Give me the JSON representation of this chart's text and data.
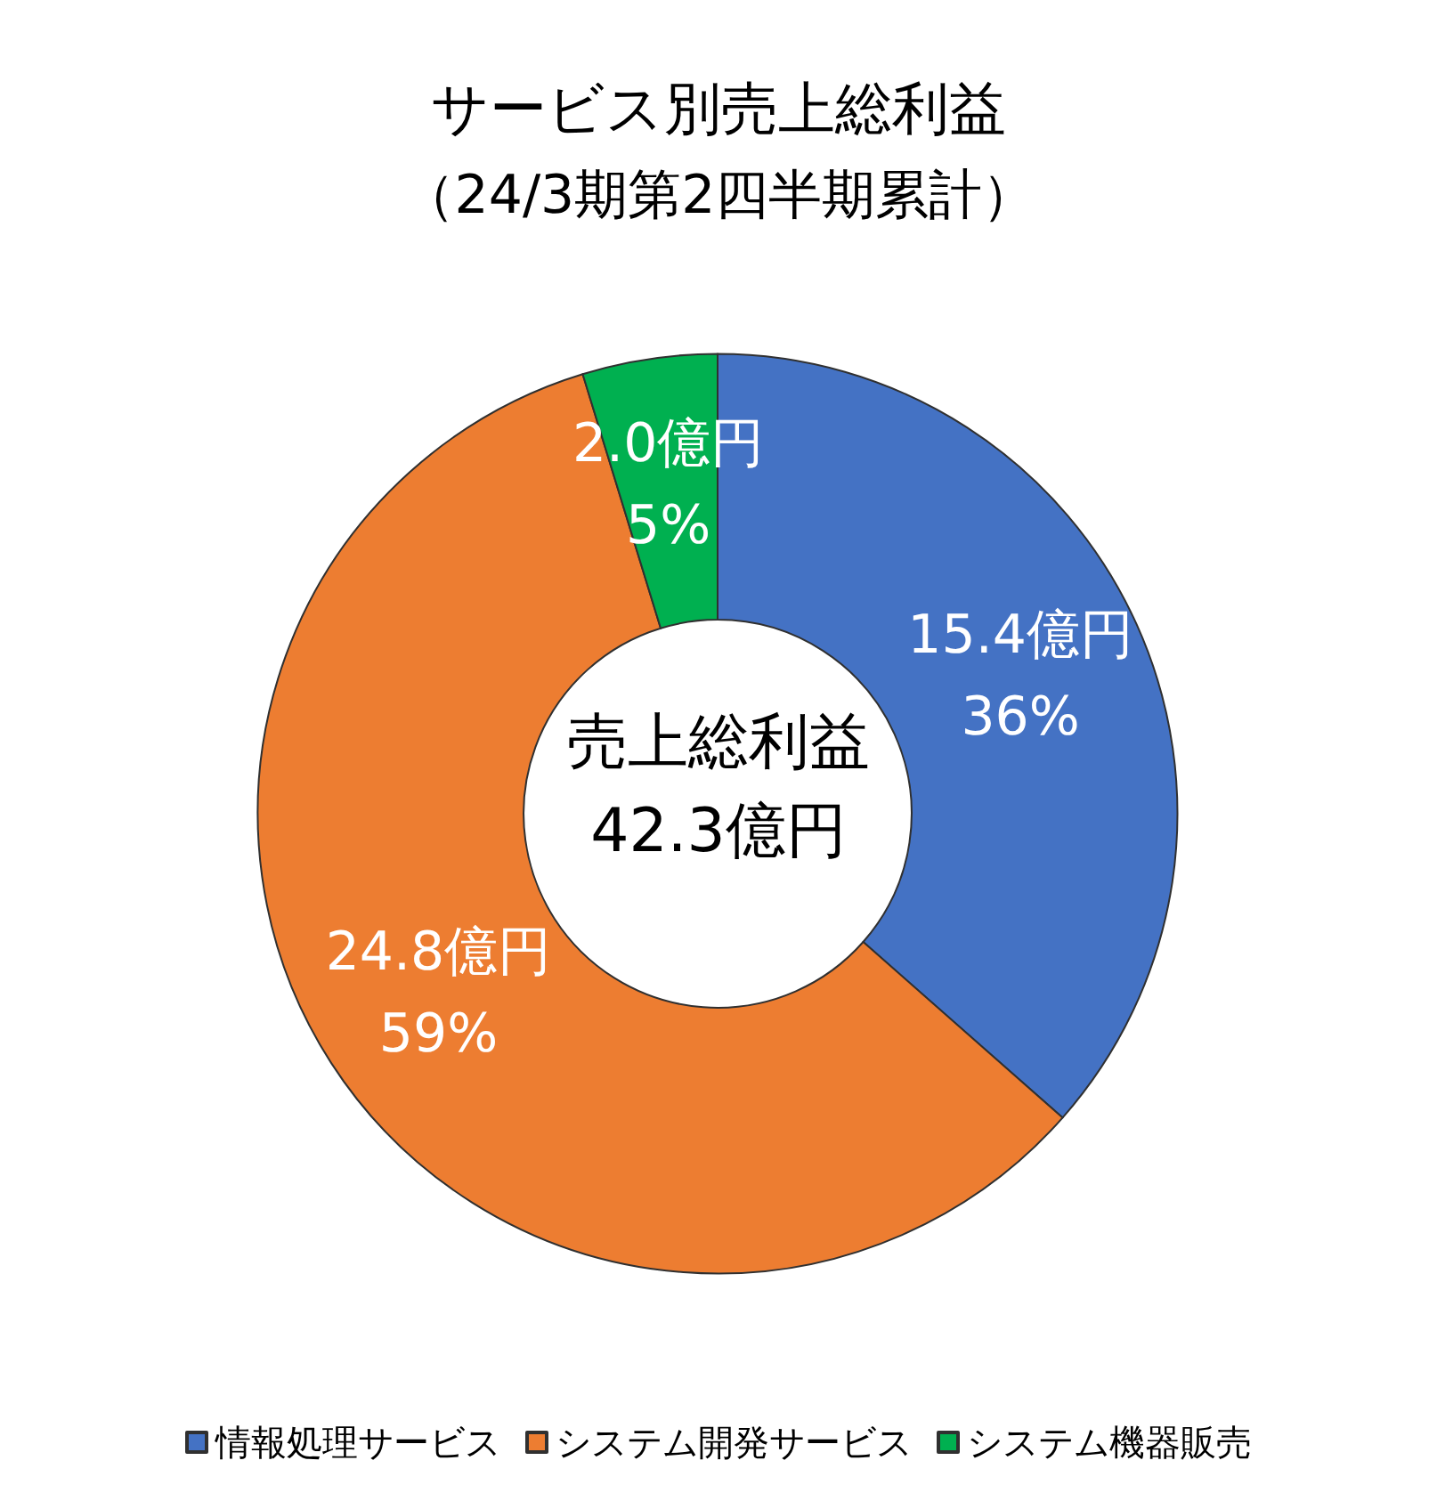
{
  "chart_data": {
    "type": "donut",
    "title": "サービス別売上総利益",
    "subtitle": "（24/3期第2四半期累計）",
    "categories": [
      "情報処理サービス",
      "システム開発サービス",
      "システム機器販売"
    ],
    "values": [
      15.4,
      24.8,
      2.0
    ],
    "colors": [
      "#4472c4",
      "#ed7d31",
      "#00b050"
    ],
    "value_labels": [
      "15.4億円\n36%",
      "24.8億円\n59%",
      "2.0億円\n5%"
    ],
    "annotations": [
      "売上総利益",
      "42.3億円"
    ],
    "legend": "bottom"
  }
}
